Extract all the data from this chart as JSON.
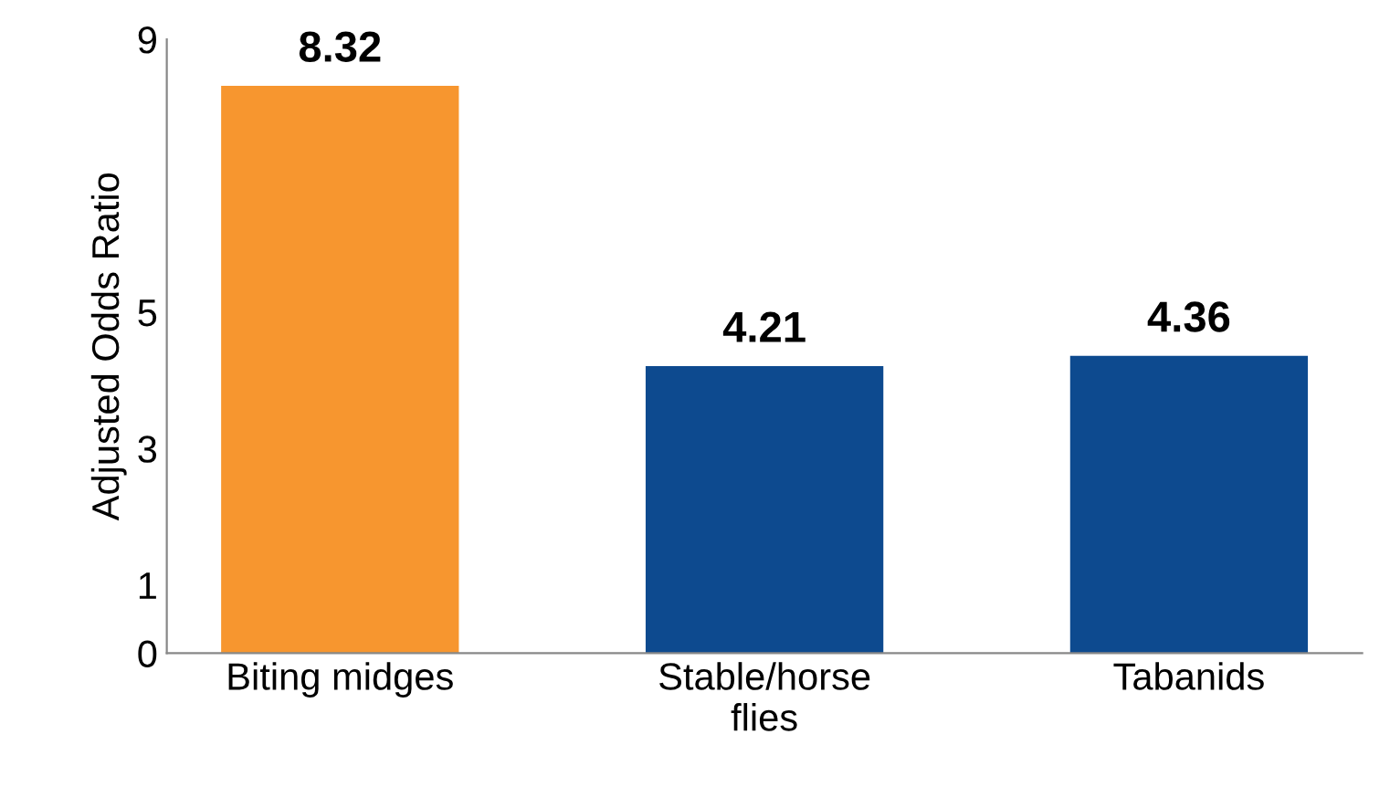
{
  "chart_data": {
    "type": "bar",
    "ylabel": "Adjusted Odds Ratio",
    "categories": [
      "Biting midges",
      "Stable/horse\nflies",
      "Tabanids"
    ],
    "values": [
      8.32,
      4.21,
      4.36
    ],
    "colors": [
      "#f7962f",
      "#0d4a8f",
      "#0d4a8f"
    ],
    "ylim": [
      0,
      9
    ],
    "yticks": [
      0,
      1,
      3,
      5,
      9
    ],
    "data_labels": true,
    "grid": false,
    "legend": false
  }
}
